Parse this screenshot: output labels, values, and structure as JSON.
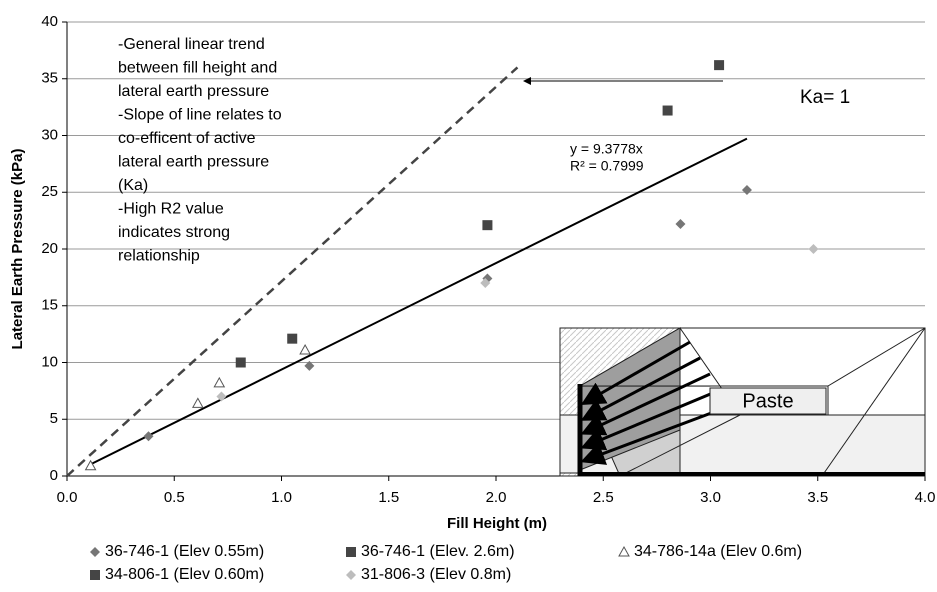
{
  "chart_data": {
    "type": "scatter",
    "xlabel": "Fill Height (m)",
    "ylabel": "Lateral Earth Pressure (kPa)",
    "xlim": [
      0,
      4
    ],
    "ylim": [
      0,
      40
    ],
    "xticks": [
      {
        "value": 0,
        "label": "0.0"
      },
      {
        "value": 0.5,
        "label": "0.5"
      },
      {
        "value": 1,
        "label": "1.0"
      },
      {
        "value": 1.5,
        "label": "1.5"
      },
      {
        "value": 2,
        "label": "2.0"
      },
      {
        "value": 2.5,
        "label": "2.5"
      },
      {
        "value": 3,
        "label": "3.0"
      },
      {
        "value": 3.5,
        "label": "3.5"
      },
      {
        "value": 4,
        "label": "4.0"
      }
    ],
    "yticks": [
      0,
      5,
      10,
      15,
      20,
      25,
      30,
      35,
      40
    ],
    "grid": true,
    "legend": "bottom",
    "series": [
      {
        "name": "36-746-1 (Elev 0.55m)",
        "marker": "diamond",
        "color": "#767676",
        "x": [
          0.38,
          1.13,
          1.96,
          2.86,
          3.17
        ],
        "values": [
          3.5,
          9.7,
          17.4,
          22.2,
          25.2
        ]
      },
      {
        "name": "36-746-1 (Elev. 2.6m)",
        "marker": "square",
        "color": "#454545",
        "x": [
          1.96,
          2.8,
          3.04
        ],
        "values": [
          22.1,
          32.2,
          36.2
        ]
      },
      {
        "name": "34-786-14a (Elev 0.6m)",
        "marker": "triangle",
        "color": "#555555",
        "x": [
          0.11,
          0.61,
          0.71,
          1.11
        ],
        "values": [
          0.9,
          6.4,
          8.2,
          11.1
        ]
      },
      {
        "name": "34-806-1 (Elev 0.60m)",
        "marker": "square",
        "color": "#454545",
        "x": [
          0.81,
          1.05
        ],
        "values": [
          10.0,
          12.1
        ]
      },
      {
        "name": "31-806-3 (Elev 0.8m)",
        "marker": "diamond",
        "color": "#bdbdbd",
        "x": [
          0.72,
          1.95,
          3.48
        ],
        "values": [
          7.0,
          17.0,
          20.0
        ]
      }
    ],
    "trendline": {
      "slope": 9.3778,
      "x": [
        0.1,
        3.17
      ],
      "equation": "y = 9.3778x",
      "r2": "R² = 0.7999"
    },
    "ka_line": {
      "x": [
        0,
        2.1
      ],
      "values": [
        0,
        36
      ],
      "label": "Ka= 1"
    },
    "annotations": [
      "-General linear trend",
      "between fill height and",
      "lateral earth pressure",
      "-Slope of line relates to",
      "co-efficent of active",
      "lateral earth pressure",
      "(Ka)",
      "-High R2 value",
      "indicates strong",
      "relationship"
    ],
    "inset_label": "Paste"
  }
}
